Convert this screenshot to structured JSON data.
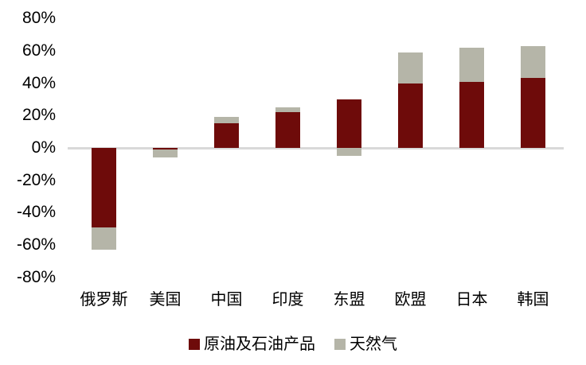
{
  "chart_data": {
    "type": "bar",
    "stacked": true,
    "orientation": "vertical",
    "title": "",
    "xlabel": "",
    "ylabel": "",
    "units": "%",
    "categories": [
      "俄罗斯",
      "美国",
      "中国",
      "印度",
      "东盟",
      "欧盟",
      "日本",
      "韩国"
    ],
    "series": [
      {
        "name": "原油及石油产品",
        "color": "#6E0B0A",
        "values": [
          -49,
          -1,
          15,
          22,
          30,
          40,
          41,
          43
        ]
      },
      {
        "name": "天然气",
        "color": "#B5B5A8",
        "values": [
          -14,
          -5,
          4,
          3,
          -5,
          19,
          21,
          20
        ]
      }
    ],
    "y_axis": {
      "min": -80,
      "max": 80,
      "step": 20,
      "tick_labels": [
        "80%",
        "60%",
        "40%",
        "20%",
        "0%",
        "-20%",
        "-40%",
        "-60%",
        "-80%"
      ]
    },
    "grid": false,
    "legend_position": "bottom-center",
    "colors": {
      "axis_line": "#D9D9D9",
      "text": "#000000",
      "background": "#FFFFFF"
    }
  }
}
